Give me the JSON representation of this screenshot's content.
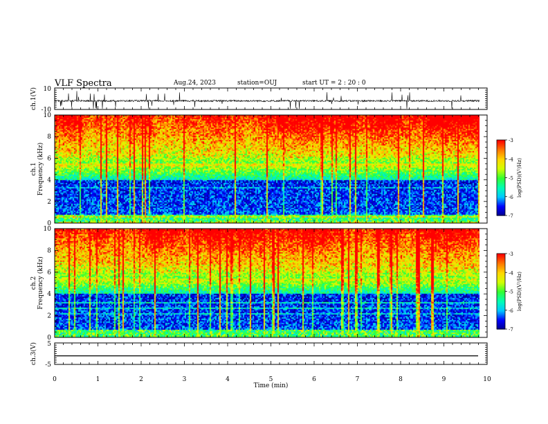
{
  "header": {
    "title": "VLF Spectra",
    "date": "Aug.24, 2023",
    "station": "station=OUJ",
    "start_ut": "start UT =  2 : 20 : 0"
  },
  "chart_data": [
    {
      "type": "line",
      "panel": "ch1-waveform",
      "ylabel": "ch.1(V)",
      "ylim": [
        -10,
        10
      ],
      "ytick_labels": [
        "10",
        "-10"
      ],
      "xlim": [
        0,
        10
      ],
      "trace_level_v": -2,
      "data_end_min": 9.83
    },
    {
      "type": "heatmap",
      "panel": "ch1-spectrogram",
      "ylabel_channel": "ch.1",
      "ylabel": "Frequency (kHz)",
      "ylim": [
        0,
        10
      ],
      "yticks": [
        "0",
        "2",
        "4",
        "6",
        "8",
        "10"
      ],
      "xlim": [
        0,
        10
      ],
      "data_end_min": 9.83,
      "colorbar": {
        "label": "log(PSD)(V²/Hz)",
        "range": [
          -7,
          -3
        ],
        "ticks": [
          "-3",
          "-4",
          "-5",
          "-6",
          "-7"
        ]
      }
    },
    {
      "type": "heatmap",
      "panel": "ch2-spectrogram",
      "ylabel_channel": "ch.2",
      "ylabel": "Frequency (kHz)",
      "ylim": [
        0,
        10
      ],
      "yticks": [
        "0",
        "2",
        "4",
        "6",
        "8",
        "10"
      ],
      "xlim": [
        0,
        10
      ],
      "data_end_min": 9.83,
      "colorbar": {
        "label": "log(PSD)(V²/Hz)",
        "range": [
          -7,
          -3
        ],
        "ticks": [
          "-3",
          "-4",
          "-5",
          "-6",
          "-7"
        ]
      }
    },
    {
      "type": "line",
      "panel": "ch3-waveform",
      "ylabel": "ch.3(V)",
      "ylim": [
        -5,
        5
      ],
      "ytick_labels": [
        "5",
        "-5"
      ],
      "xlim": [
        0,
        10
      ],
      "trace_level_v": -1,
      "data_end_min": 9.83,
      "xlabel": "Time (min)",
      "xticks": [
        "0",
        "1",
        "2",
        "3",
        "4",
        "5",
        "6",
        "7",
        "8",
        "9",
        "10"
      ]
    }
  ],
  "colors": {
    "colormap": [
      "#00008b",
      "#0000ff",
      "#00c8ff",
      "#00ffb4",
      "#32ff32",
      "#d2ff00",
      "#ffd700",
      "#ff7800",
      "#ff0000"
    ],
    "axes": "#000000",
    "trace": "#000000"
  }
}
